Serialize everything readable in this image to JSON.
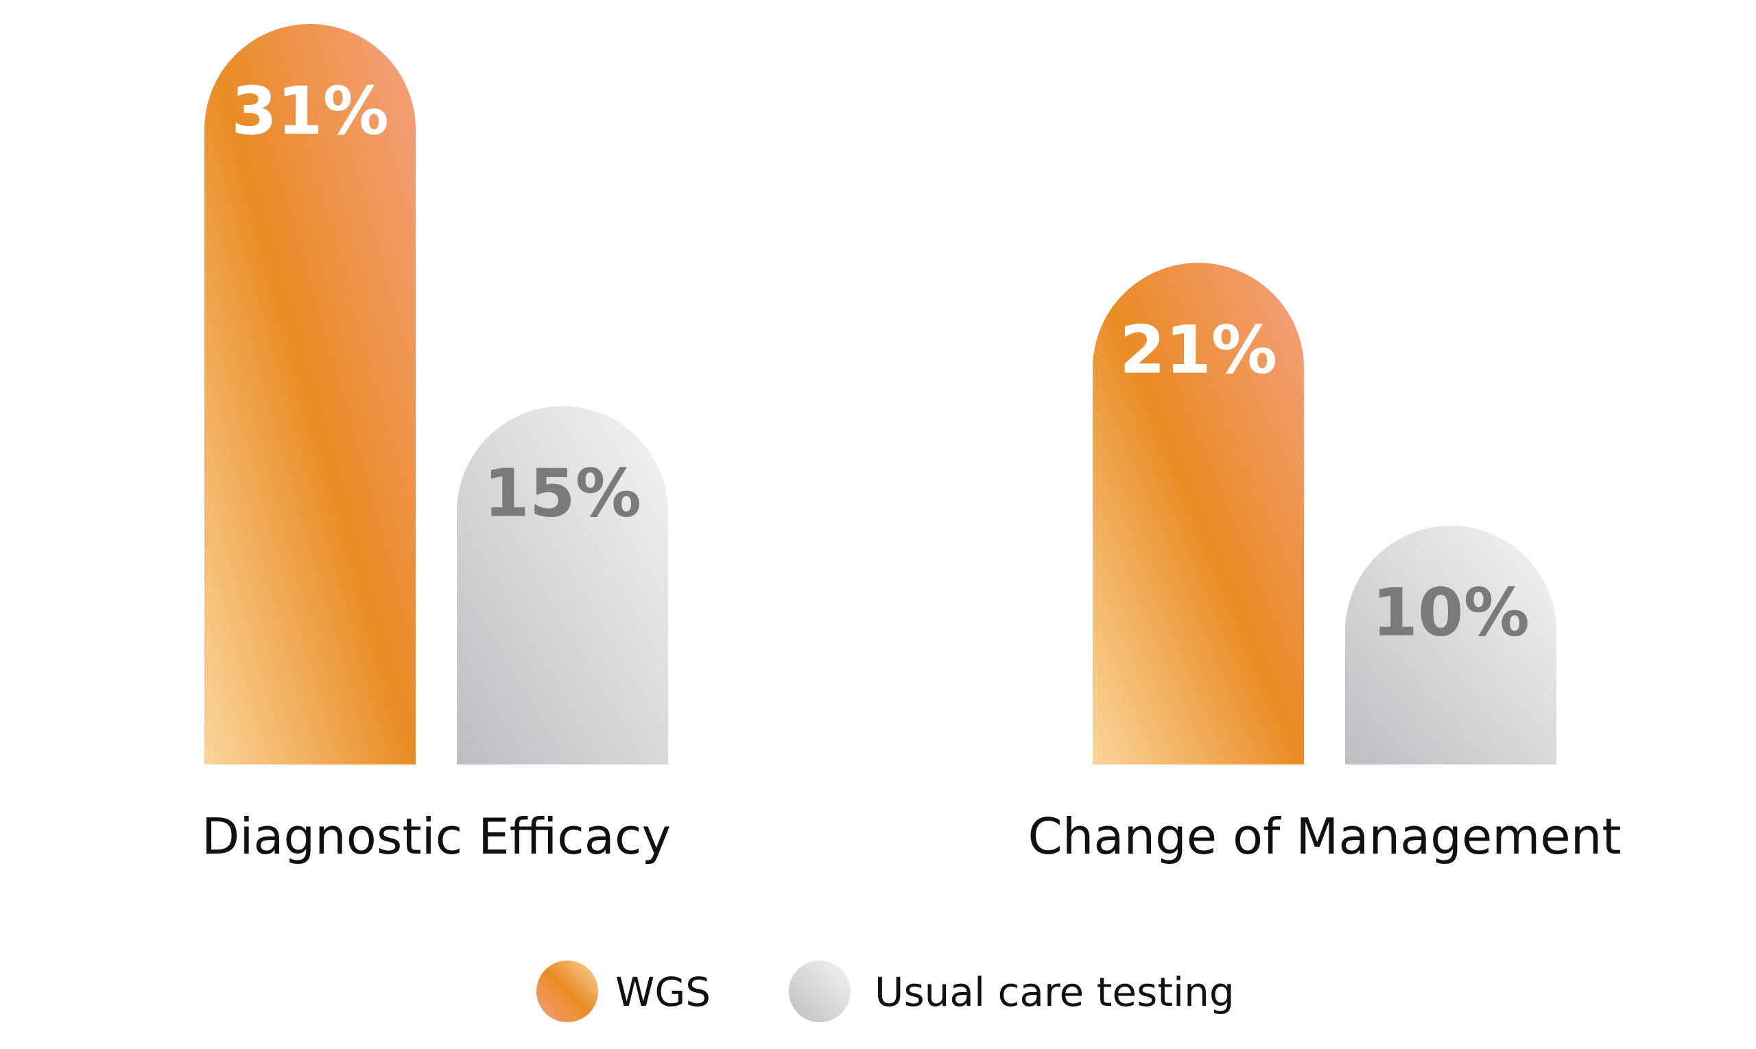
{
  "chart_data": {
    "type": "bar",
    "categories": [
      "Diagnostic Efficacy",
      "Change of Management"
    ],
    "series": [
      {
        "name": "WGS",
        "values": [
          31,
          21
        ],
        "value_labels": [
          "31%",
          "21%"
        ],
        "color": "#E98B24",
        "label_color": "#FFFFFF"
      },
      {
        "name": "Usual care testing",
        "values": [
          15,
          10
        ],
        "value_labels": [
          "15%",
          "10%"
        ],
        "color": "#C9CACC",
        "label_color": "#7A7A7A"
      }
    ],
    "ylim": [
      0,
      31
    ],
    "grid": false,
    "legend_position": "bottom-center",
    "xlabel": "",
    "ylabel": "",
    "title": ""
  }
}
